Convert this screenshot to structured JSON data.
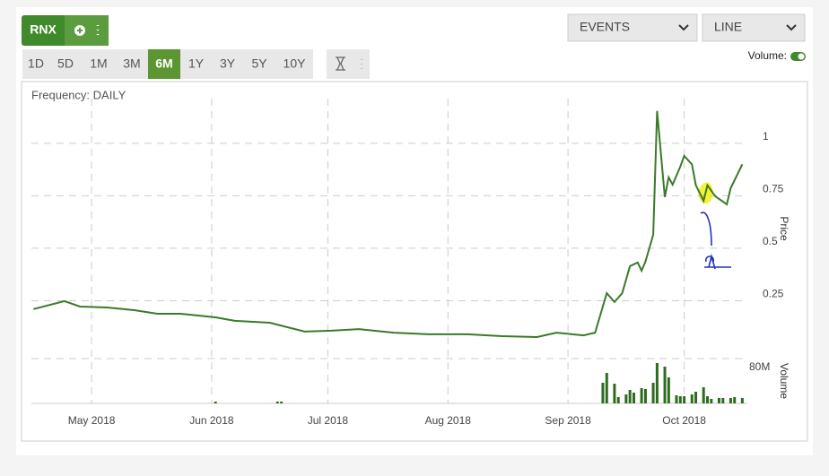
{
  "toolbar": {
    "symbol": "RNX",
    "ranges": [
      "1D",
      "5D",
      "1M",
      "3M",
      "6M",
      "1Y",
      "3Y",
      "5Y",
      "10Y"
    ],
    "active_range": "6M"
  },
  "dropdowns": [
    "EVENTS",
    "LINE"
  ],
  "volume_toggle": {
    "label": "Volume:",
    "on": true
  },
  "chart_data": [
    {
      "type": "line",
      "subtitle": "Frequency: DAILY",
      "ylabel": "Price",
      "color": "#3a7a2a",
      "grid": true,
      "x": [
        106,
        114,
        118,
        125,
        132,
        138,
        144,
        153,
        158,
        167,
        176,
        183,
        190,
        199,
        208,
        218,
        227,
        236,
        241,
        248,
        251,
        254,
        256,
        258,
        260,
        262,
        263,
        264,
        266,
        267,
        269,
        270,
        271,
        273,
        274,
        276,
        277,
        279,
        280,
        282,
        283,
        285,
        286,
        289
      ],
      "values": [
        0.21,
        0.248,
        0.222,
        0.218,
        0.205,
        0.188,
        0.188,
        0.171,
        0.154,
        0.145,
        0.103,
        0.107,
        0.115,
        0.098,
        0.09,
        0.09,
        0.081,
        0.077,
        0.098,
        0.085,
        0.098,
        0.286,
        0.244,
        0.286,
        0.415,
        0.432,
        0.393,
        0.436,
        0.564,
        1.154,
        0.744,
        0.838,
        0.803,
        0.889,
        0.94,
        0.9,
        0.8,
        0.726,
        0.8,
        0.748,
        0.735,
        0.709,
        0.786,
        0.9
      ],
      "xlim": [
        105,
        291
      ],
      "xticks": [
        {
          "value": 121,
          "label": "May 2018"
        },
        {
          "value": 152,
          "label": "Jun 2018"
        },
        {
          "value": 182,
          "label": "Jul 2018"
        },
        {
          "value": 213,
          "label": "Aug 2018"
        },
        {
          "value": 244,
          "label": "Sep 2018"
        },
        {
          "value": 274,
          "label": "Oct 2018"
        }
      ],
      "ylim": [
        0,
        1.2
      ],
      "yticks": [
        0.25,
        0.5,
        0.75,
        1
      ]
    },
    {
      "type": "bar",
      "ylabel": "Volume",
      "color": "#2f6b1f",
      "x": [
        153,
        169,
        170,
        253,
        254,
        256,
        257,
        259,
        260,
        261,
        263,
        264,
        266,
        267,
        269,
        270,
        272,
        273,
        274,
        276,
        277,
        279,
        280,
        281,
        283,
        284,
        286,
        287,
        289
      ],
      "values": [
        3200000,
        3200000,
        3200000,
        36800000,
        54400000,
        35200000,
        11200000,
        16000000,
        24000000,
        19200000,
        27200000,
        25600000,
        36800000,
        72000000,
        65600000,
        46400000,
        14400000,
        12800000,
        12800000,
        16000000,
        20800000,
        28800000,
        12800000,
        8000000,
        9600000,
        9600000,
        9600000,
        11200000,
        9600000
      ],
      "xlim": [
        105,
        291
      ],
      "ylim": [
        0,
        80000000
      ],
      "yticks": [
        {
          "value": 80000000,
          "label": "80M"
        }
      ]
    }
  ]
}
